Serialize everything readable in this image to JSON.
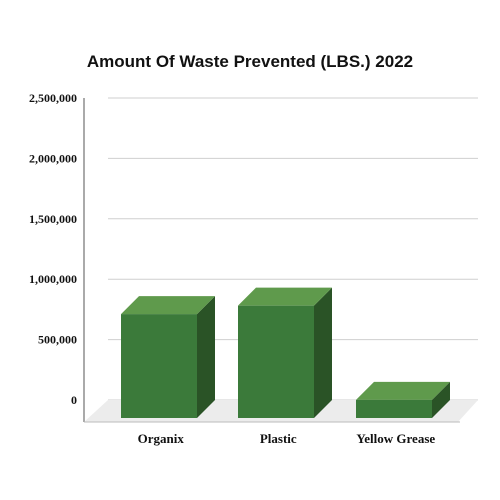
{
  "chart_data": {
    "type": "bar",
    "title": "Amount Of Waste Prevented (LBS.) 2022",
    "categories": [
      "Organix",
      "Plastic",
      "Yellow Grease"
    ],
    "values": [
      860000,
      930000,
      150000
    ],
    "ylim": [
      0,
      2500000
    ],
    "yticks": [
      "0",
      "500,000",
      "1,000,000",
      "1,500,000",
      "2,000,000",
      "2,500,000"
    ],
    "grid": true,
    "three_d": true,
    "colors": {
      "front": "#3b7a3a",
      "top": "#5f9a4c",
      "side": "#2a5326",
      "grid": "#cfcfcf",
      "floor": "#ececec"
    }
  }
}
